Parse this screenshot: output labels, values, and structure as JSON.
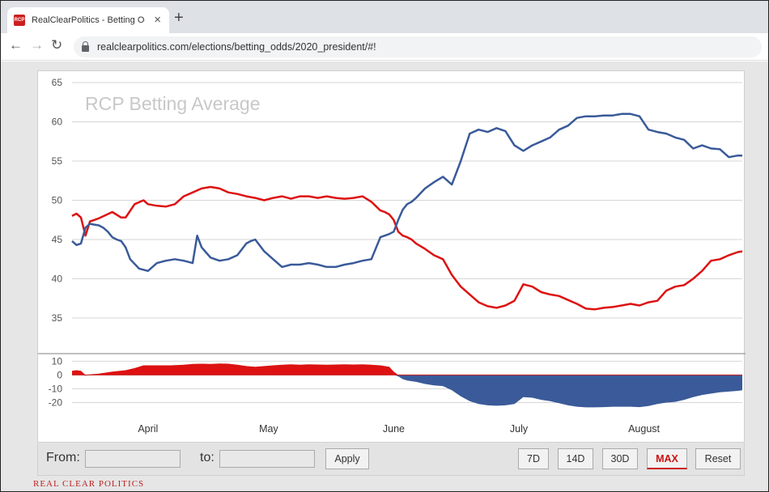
{
  "browser": {
    "tab_title": "RealClearPolitics - Betting Odds",
    "favicon_text": "RCP",
    "close_glyph": "×",
    "new_tab_glyph": "+",
    "back_glyph": "←",
    "forward_glyph": "→",
    "reload_glyph": "↻",
    "url": "realclearpolitics.com/elections/betting_odds/2020_president/#!"
  },
  "controls": {
    "from_label": "From:",
    "to_label": "to:",
    "apply_label": "Apply",
    "range_buttons": [
      "7D",
      "14D",
      "30D",
      "MAX"
    ],
    "active_range": "MAX",
    "reset_label": "Reset"
  },
  "footer": {
    "brand": "REAL CLEAR POLITICS"
  },
  "colors": {
    "red": "#dd1111",
    "blue": "#3a5a99",
    "grid": "#d6d6d6",
    "watermark": "#c8c8c8"
  },
  "chart_data": [
    {
      "type": "line",
      "title": "RCP Betting Average",
      "ylim": [
        35,
        65
      ],
      "yticks": [
        35,
        40,
        45,
        50,
        55,
        60,
        65
      ],
      "x_range_days": [
        91,
        241
      ],
      "xtick_labels": [
        "April",
        "May",
        "June",
        "July",
        "August"
      ],
      "xtick_days": [
        108,
        135,
        163,
        191,
        219
      ],
      "grid": true,
      "series": [
        {
          "color": "red",
          "x": [
            91,
            92,
            93,
            94,
            95,
            96,
            97,
            100,
            102,
            103,
            105,
            107,
            108,
            110,
            112,
            114,
            116,
            118,
            120,
            122,
            124,
            126,
            128,
            130,
            132,
            134,
            136,
            138,
            140,
            142,
            144,
            146,
            148,
            150,
            152,
            154,
            156,
            158,
            160,
            161,
            162,
            163,
            164,
            165,
            166,
            167,
            168,
            170,
            172,
            174,
            176,
            178,
            180,
            182,
            184,
            186,
            188,
            190,
            192,
            194,
            196,
            198,
            200,
            202,
            204,
            206,
            208,
            210,
            212,
            214,
            216,
            218,
            220,
            222,
            224,
            226,
            228,
            230,
            232,
            234,
            236,
            238,
            240,
            241
          ],
          "y": [
            48.0,
            48.3,
            47.8,
            45.5,
            47.3,
            47.5,
            47.7,
            48.5,
            47.8,
            47.8,
            49.5,
            50.0,
            49.5,
            49.3,
            49.2,
            49.5,
            50.5,
            51.0,
            51.5,
            51.7,
            51.5,
            51.0,
            50.8,
            50.5,
            50.3,
            50.0,
            50.3,
            50.5,
            50.2,
            50.5,
            50.5,
            50.3,
            50.5,
            50.3,
            50.2,
            50.3,
            50.5,
            49.8,
            48.7,
            48.5,
            48.2,
            47.5,
            46.0,
            45.5,
            45.3,
            45.0,
            44.5,
            43.8,
            43.0,
            42.5,
            40.5,
            39.0,
            38.0,
            37.0,
            36.5,
            36.3,
            36.6,
            37.2,
            39.3,
            39.0,
            38.3,
            38.0,
            37.8,
            37.3,
            36.8,
            36.2,
            36.1,
            36.3,
            36.4,
            36.6,
            36.8,
            36.6,
            37.0,
            37.2,
            38.5,
            39.0,
            39.2,
            40.0,
            41.0,
            42.3,
            42.5,
            43.0,
            43.4,
            43.5
          ]
        },
        {
          "color": "blue",
          "x": [
            91,
            92,
            93,
            94,
            95,
            96,
            97,
            98,
            99,
            100,
            101,
            102,
            103,
            104,
            106,
            108,
            110,
            112,
            114,
            116,
            118,
            119,
            120,
            122,
            124,
            126,
            128,
            130,
            131,
            132,
            134,
            136,
            138,
            140,
            142,
            144,
            146,
            148,
            150,
            152,
            154,
            156,
            158,
            160,
            161,
            162,
            163,
            164,
            165,
            166,
            167,
            168,
            170,
            172,
            174,
            176,
            178,
            180,
            182,
            184,
            186,
            188,
            190,
            192,
            194,
            196,
            198,
            200,
            202,
            204,
            206,
            208,
            210,
            212,
            214,
            216,
            218,
            220,
            222,
            224,
            226,
            228,
            230,
            232,
            234,
            236,
            238,
            240,
            241
          ],
          "y": [
            44.8,
            44.3,
            44.5,
            46.5,
            47.0,
            46.9,
            46.8,
            46.5,
            46.0,
            45.3,
            45.0,
            44.8,
            44.0,
            42.5,
            41.3,
            41.0,
            42.0,
            42.3,
            42.5,
            42.3,
            42.0,
            45.5,
            44.0,
            42.7,
            42.3,
            42.5,
            43.0,
            44.5,
            44.8,
            45.0,
            43.5,
            42.5,
            41.5,
            41.8,
            41.8,
            42.0,
            41.8,
            41.5,
            41.5,
            41.8,
            42.0,
            42.3,
            42.5,
            45.3,
            45.5,
            45.7,
            46.0,
            47.5,
            48.8,
            49.5,
            49.8,
            50.3,
            51.5,
            52.3,
            53.0,
            52.0,
            55.0,
            58.5,
            59.0,
            58.7,
            59.2,
            58.8,
            57.0,
            56.3,
            57.0,
            57.5,
            58.0,
            59.0,
            59.5,
            60.5,
            60.7,
            60.7,
            60.8,
            60.8,
            61.0,
            61.0,
            60.7,
            59.0,
            58.7,
            58.5,
            58.0,
            57.7,
            56.6,
            57.0,
            56.6,
            56.5,
            55.5,
            55.7,
            55.7
          ]
        }
      ]
    },
    {
      "type": "area",
      "ylim": [
        -25,
        12
      ],
      "yticks": [
        -20,
        -10,
        0,
        10
      ],
      "x": [
        91,
        92,
        93,
        94,
        95,
        97,
        100,
        103,
        105,
        107,
        110,
        113,
        116,
        118,
        120,
        122,
        124,
        126,
        128,
        130,
        132,
        134,
        136,
        138,
        140,
        142,
        144,
        146,
        148,
        150,
        152,
        154,
        156,
        158,
        160,
        162,
        163,
        164,
        165,
        166,
        168,
        170,
        172,
        174,
        176,
        178,
        180,
        182,
        184,
        186,
        188,
        190,
        192,
        194,
        196,
        198,
        200,
        202,
        204,
        206,
        208,
        210,
        212,
        214,
        216,
        218,
        220,
        222,
        224,
        226,
        228,
        230,
        232,
        234,
        236,
        238,
        240,
        241
      ],
      "values": [
        3.0,
        3.5,
        3.0,
        -0.5,
        0.5,
        1.0,
        2.5,
        3.5,
        5.0,
        7.0,
        7.0,
        7.0,
        7.5,
        8.0,
        8.2,
        8.0,
        8.3,
        8.2,
        7.5,
        6.5,
        6.0,
        6.5,
        7.0,
        7.5,
        7.8,
        7.5,
        7.8,
        7.6,
        7.5,
        7.6,
        7.8,
        7.6,
        7.8,
        7.5,
        7.0,
        6.0,
        2.5,
        -1.0,
        -3.0,
        -4.0,
        -5.0,
        -6.5,
        -7.5,
        -8.0,
        -11.0,
        -15.5,
        -19.0,
        -21.0,
        -22.0,
        -22.3,
        -22.0,
        -21.0,
        -16.0,
        -16.5,
        -18.0,
        -19.0,
        -20.5,
        -22.0,
        -23.0,
        -23.5,
        -23.5,
        -23.3,
        -23.0,
        -23.0,
        -23.0,
        -23.3,
        -22.5,
        -21.0,
        -20.0,
        -19.5,
        -18.0,
        -16.0,
        -14.5,
        -13.5,
        -12.5,
        -12.0,
        -11.5,
        -11.0
      ],
      "colors_by_sign": {
        "positive": "red",
        "negative": "blue"
      }
    }
  ]
}
